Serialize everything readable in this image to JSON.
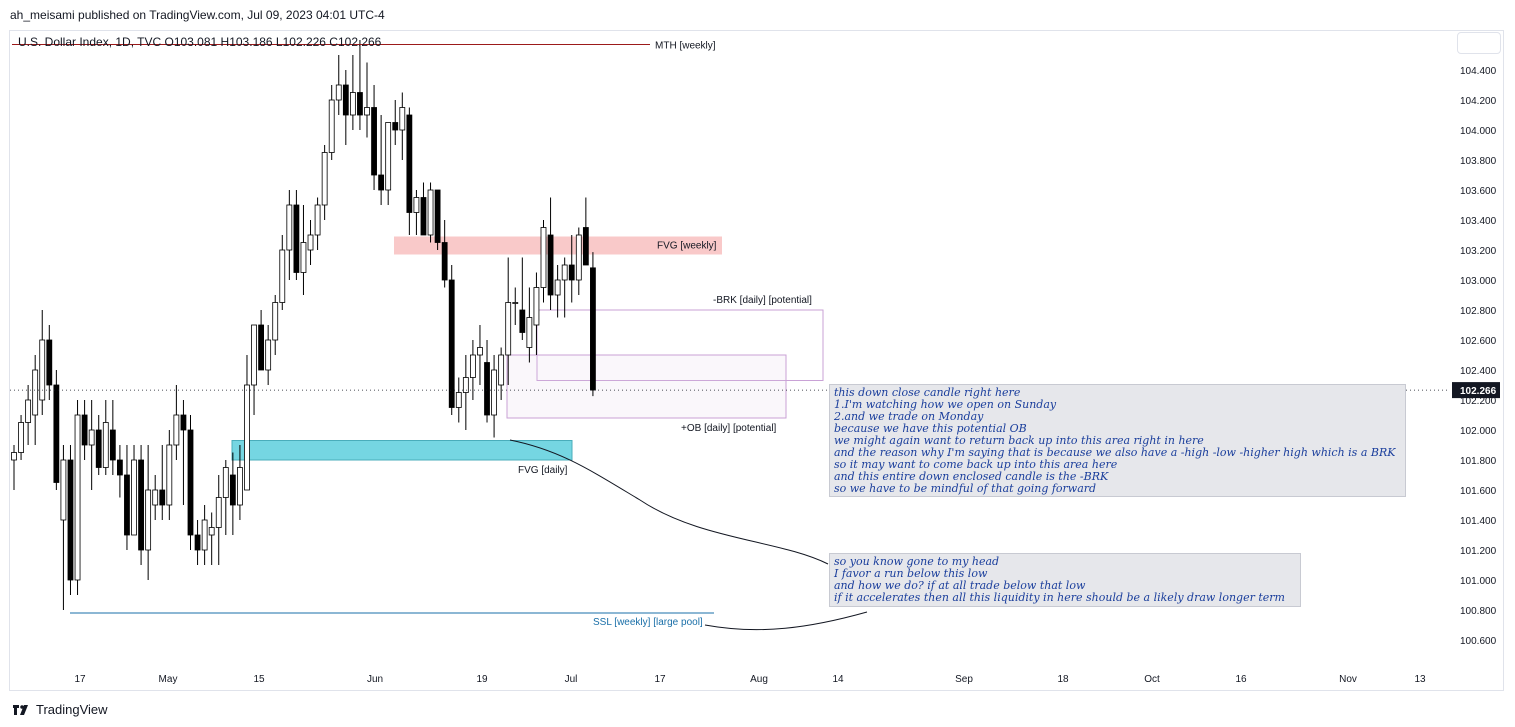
{
  "header": {
    "publisher": "ah_meisami published on TradingView.com, Jul 09, 2023 04:01 UTC-4",
    "legend": "U.S. Dollar Index, 1D, TVC  O103.081  H103.186  L102.226  C102.266"
  },
  "footer": {
    "brand": "TradingView"
  },
  "colors": {
    "up_body": "#ffffff",
    "down_body": "#000000",
    "wick": "#000000",
    "fvg_weekly": "#f7b7b7",
    "fvg_daily": "#5ed0de",
    "note_text": "#1a3e9c",
    "ssl_line": "#1a6fa8",
    "mth_line": "#9c1a1a"
  },
  "chart_data": {
    "type": "candlestick",
    "symbol": "U.S. Dollar Index",
    "timeframe": "1D",
    "source": "TVC",
    "ohlc_last": {
      "open": 103.081,
      "high": 103.186,
      "low": 102.226,
      "close": 102.266
    },
    "current_price_label": "102.266",
    "y_axis": {
      "min": 100.5,
      "max": 104.6,
      "ticks": [
        "104.400",
        "104.200",
        "104.000",
        "103.800",
        "103.600",
        "103.400",
        "103.200",
        "103.000",
        "102.800",
        "102.600",
        "102.400",
        "102.200",
        "102.000",
        "101.800",
        "101.600",
        "101.400",
        "101.200",
        "101.000",
        "100.800",
        "100.600"
      ]
    },
    "x_axis": {
      "ticks": [
        "17",
        "May",
        "15",
        "Jun",
        "19",
        "Jul",
        "17",
        "Aug",
        "14",
        "Sep",
        "18",
        "Oct",
        "16",
        "Nov",
        "13"
      ]
    },
    "candles": [
      {
        "o": 101.8,
        "h": 101.9,
        "l": 101.6,
        "c": 101.85
      },
      {
        "o": 101.85,
        "h": 102.1,
        "l": 101.8,
        "c": 102.05
      },
      {
        "o": 102.05,
        "h": 102.3,
        "l": 101.9,
        "c": 102.2
      },
      {
        "o": 102.1,
        "h": 102.5,
        "l": 101.9,
        "c": 102.4
      },
      {
        "o": 102.2,
        "h": 102.8,
        "l": 102.1,
        "c": 102.6
      },
      {
        "o": 102.6,
        "h": 102.7,
        "l": 102.2,
        "c": 102.3
      },
      {
        "o": 102.3,
        "h": 102.4,
        "l": 101.6,
        "c": 101.65
      },
      {
        "o": 101.4,
        "h": 101.9,
        "l": 100.8,
        "c": 101.8
      },
      {
        "o": 101.8,
        "h": 101.9,
        "l": 100.9,
        "c": 101.0
      },
      {
        "o": 101.0,
        "h": 102.2,
        "l": 100.9,
        "c": 102.1
      },
      {
        "o": 102.1,
        "h": 102.2,
        "l": 101.8,
        "c": 101.9
      },
      {
        "o": 101.9,
        "h": 102.2,
        "l": 101.6,
        "c": 102.0
      },
      {
        "o": 102.0,
        "h": 102.1,
        "l": 101.7,
        "c": 101.75
      },
      {
        "o": 101.75,
        "h": 102.2,
        "l": 101.7,
        "c": 102.05
      },
      {
        "o": 102.0,
        "h": 102.2,
        "l": 101.7,
        "c": 101.8
      },
      {
        "o": 101.8,
        "h": 101.9,
        "l": 101.55,
        "c": 101.7
      },
      {
        "o": 101.7,
        "h": 101.9,
        "l": 101.2,
        "c": 101.3
      },
      {
        "o": 101.3,
        "h": 101.9,
        "l": 101.3,
        "c": 101.8
      },
      {
        "o": 101.8,
        "h": 101.9,
        "l": 101.1,
        "c": 101.2
      },
      {
        "o": 101.2,
        "h": 101.9,
        "l": 101.0,
        "c": 101.6
      },
      {
        "o": 101.5,
        "h": 101.7,
        "l": 101.4,
        "c": 101.6
      },
      {
        "o": 101.6,
        "h": 101.9,
        "l": 101.4,
        "c": 101.5
      },
      {
        "o": 101.5,
        "h": 102.0,
        "l": 101.4,
        "c": 101.9
      },
      {
        "o": 101.9,
        "h": 102.3,
        "l": 101.8,
        "c": 102.1
      },
      {
        "o": 102.1,
        "h": 102.2,
        "l": 101.5,
        "c": 102.0
      },
      {
        "o": 102.0,
        "h": 102.1,
        "l": 101.2,
        "c": 101.3
      },
      {
        "o": 101.3,
        "h": 101.4,
        "l": 101.1,
        "c": 101.2
      },
      {
        "o": 101.2,
        "h": 101.5,
        "l": 101.1,
        "c": 101.4
      },
      {
        "o": 101.3,
        "h": 101.45,
        "l": 101.1,
        "c": 101.35
      },
      {
        "o": 101.35,
        "h": 101.7,
        "l": 101.1,
        "c": 101.55
      },
      {
        "o": 101.55,
        "h": 101.8,
        "l": 101.3,
        "c": 101.75
      },
      {
        "o": 101.7,
        "h": 101.85,
        "l": 101.3,
        "c": 101.5
      },
      {
        "o": 101.5,
        "h": 101.9,
        "l": 101.4,
        "c": 101.75
      },
      {
        "o": 101.6,
        "h": 102.5,
        "l": 101.6,
        "c": 102.3
      },
      {
        "o": 102.3,
        "h": 102.7,
        "l": 102.1,
        "c": 102.7
      },
      {
        "o": 102.7,
        "h": 102.8,
        "l": 102.4,
        "c": 102.4
      },
      {
        "o": 102.4,
        "h": 102.7,
        "l": 102.3,
        "c": 102.6
      },
      {
        "o": 102.6,
        "h": 102.9,
        "l": 102.5,
        "c": 102.85
      },
      {
        "o": 102.85,
        "h": 103.3,
        "l": 102.8,
        "c": 103.2
      },
      {
        "o": 103.2,
        "h": 103.6,
        "l": 103.0,
        "c": 103.5
      },
      {
        "o": 103.5,
        "h": 103.6,
        "l": 103.0,
        "c": 103.05
      },
      {
        "o": 103.05,
        "h": 103.5,
        "l": 102.9,
        "c": 103.25
      },
      {
        "o": 103.2,
        "h": 103.4,
        "l": 103.1,
        "c": 103.3
      },
      {
        "o": 103.3,
        "h": 103.55,
        "l": 103.2,
        "c": 103.5
      },
      {
        "o": 103.5,
        "h": 103.9,
        "l": 103.4,
        "c": 103.85
      },
      {
        "o": 103.85,
        "h": 104.3,
        "l": 103.8,
        "c": 104.2
      },
      {
        "o": 104.2,
        "h": 104.5,
        "l": 104.1,
        "c": 104.3
      },
      {
        "o": 104.3,
        "h": 104.4,
        "l": 103.9,
        "c": 104.1
      },
      {
        "o": 104.1,
        "h": 104.5,
        "l": 104.0,
        "c": 104.25
      },
      {
        "o": 104.25,
        "h": 104.6,
        "l": 104.0,
        "c": 104.1
      },
      {
        "o": 104.1,
        "h": 104.45,
        "l": 103.95,
        "c": 104.15
      },
      {
        "o": 104.15,
        "h": 104.3,
        "l": 103.6,
        "c": 103.7
      },
      {
        "o": 103.7,
        "h": 104.1,
        "l": 103.5,
        "c": 103.6
      },
      {
        "o": 103.6,
        "h": 104.05,
        "l": 103.5,
        "c": 104.05
      },
      {
        "o": 104.05,
        "h": 104.2,
        "l": 103.9,
        "c": 104.0
      },
      {
        "o": 104.0,
        "h": 104.25,
        "l": 103.8,
        "c": 104.15
      },
      {
        "o": 104.1,
        "h": 104.15,
        "l": 103.3,
        "c": 103.45
      },
      {
        "o": 103.45,
        "h": 103.6,
        "l": 103.3,
        "c": 103.55
      },
      {
        "o": 103.55,
        "h": 103.65,
        "l": 103.3,
        "c": 103.3
      },
      {
        "o": 103.3,
        "h": 103.65,
        "l": 103.25,
        "c": 103.6
      },
      {
        "o": 103.6,
        "h": 103.6,
        "l": 103.2,
        "c": 103.25
      },
      {
        "o": 103.25,
        "h": 103.4,
        "l": 102.95,
        "c": 103.0
      },
      {
        "o": 103.0,
        "h": 103.1,
        "l": 102.1,
        "c": 102.15
      },
      {
        "o": 102.15,
        "h": 102.35,
        "l": 102.05,
        "c": 102.25
      },
      {
        "o": 102.25,
        "h": 102.5,
        "l": 102.0,
        "c": 102.35
      },
      {
        "o": 102.35,
        "h": 102.6,
        "l": 102.2,
        "c": 102.5
      },
      {
        "o": 102.5,
        "h": 102.7,
        "l": 102.3,
        "c": 102.55
      },
      {
        "o": 102.45,
        "h": 102.6,
        "l": 102.05,
        "c": 102.1
      },
      {
        "o": 102.1,
        "h": 102.5,
        "l": 101.95,
        "c": 102.4
      },
      {
        "o": 102.3,
        "h": 102.55,
        "l": 102.2,
        "c": 102.5
      },
      {
        "o": 102.5,
        "h": 103.15,
        "l": 102.3,
        "c": 102.85
      },
      {
        "o": 102.85,
        "h": 102.95,
        "l": 102.7,
        "c": 102.85
      },
      {
        "o": 102.8,
        "h": 103.15,
        "l": 102.6,
        "c": 102.65
      },
      {
        "o": 102.55,
        "h": 102.95,
        "l": 102.45,
        "c": 102.75
      },
      {
        "o": 102.7,
        "h": 103.05,
        "l": 102.5,
        "c": 102.95
      },
      {
        "o": 102.95,
        "h": 103.4,
        "l": 102.85,
        "c": 103.35
      },
      {
        "o": 103.3,
        "h": 103.55,
        "l": 102.8,
        "c": 102.9
      },
      {
        "o": 102.9,
        "h": 103.1,
        "l": 102.75,
        "c": 103.0
      },
      {
        "o": 103.0,
        "h": 103.15,
        "l": 102.75,
        "c": 103.1
      },
      {
        "o": 103.1,
        "h": 103.3,
        "l": 102.85,
        "c": 103.0
      },
      {
        "o": 103.0,
        "h": 103.35,
        "l": 102.9,
        "c": 103.3
      },
      {
        "o": 103.35,
        "h": 103.55,
        "l": 103.1,
        "c": 103.1
      },
      {
        "o": 103.081,
        "h": 103.186,
        "l": 102.226,
        "c": 102.266
      }
    ],
    "annotations": [
      {
        "type": "zone",
        "label": "FVG [weekly]",
        "y_top": 103.29,
        "y_bottom": 103.17
      },
      {
        "type": "zone",
        "label": "FVG [daily]",
        "y_top": 101.93,
        "y_bottom": 101.8
      },
      {
        "type": "box",
        "label": "-BRK [daily] [potential]",
        "y_top": 102.8,
        "y_bottom": 102.33
      },
      {
        "type": "box",
        "label": "+OB [daily] [potential]",
        "y_top": 102.5,
        "y_bottom": 102.08
      },
      {
        "type": "hline",
        "label": "MTH [weekly]",
        "y": 104.57
      },
      {
        "type": "hline",
        "label": "SSL [weekly] [large pool]",
        "y": 100.78
      },
      {
        "type": "hline",
        "label": "current price",
        "y": 102.266
      }
    ]
  },
  "notes": {
    "note1": [
      "this down close candle right here",
      "1.I'm watching how we open on Sunday",
      "2.and we trade on Monday",
      "because we have this potential OB",
      "we might again want to return back up into this area right in here",
      "and the reason why I'm saying that is because we also have a -high -low -higher high which is a BRK",
      "so it may want to come back up into this area here",
      "and this entire down enclosed candle is the -BRK",
      "so we have to be mindful of that going forward"
    ],
    "note2": [
      "so you know gone to my head",
      "I favor a run below this low",
      "and how we do? if at all trade below that low",
      "if it accelerates then all this liquidity in here should be a likely draw longer term"
    ]
  }
}
